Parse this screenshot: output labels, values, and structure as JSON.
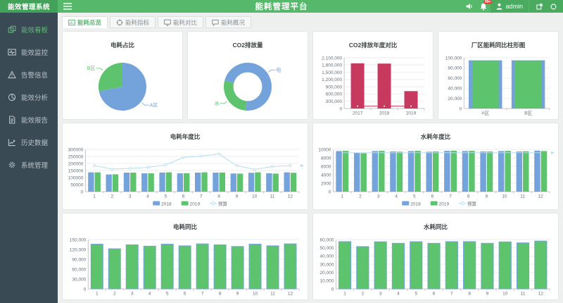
{
  "header": {
    "logo": "能效管理系统",
    "title": "能耗管理平台",
    "user": "admin",
    "badge": "99+"
  },
  "sidebar": {
    "items": [
      {
        "label": "能效看板",
        "icon": "dashboard-icon",
        "active": true
      },
      {
        "label": "能效监控",
        "icon": "monitor-icon",
        "active": false
      },
      {
        "label": "告警信息",
        "icon": "alert-icon",
        "active": false
      },
      {
        "label": "能效分析",
        "icon": "analysis-icon",
        "active": false
      },
      {
        "label": "能效报告",
        "icon": "report-icon",
        "active": false
      },
      {
        "label": "历史数据",
        "icon": "history-icon",
        "active": false
      },
      {
        "label": "系统管理",
        "icon": "settings-icon",
        "active": false
      }
    ]
  },
  "tabs": [
    {
      "label": "能耗总览",
      "active": true
    },
    {
      "label": "能耗指标",
      "active": false
    },
    {
      "label": "能耗对比",
      "active": false
    },
    {
      "label": "能耗概况",
      "active": false
    }
  ],
  "colors": {
    "accent_green": "#5FB878",
    "bar_blue": "#74a3dc",
    "bar_green": "#5ec36d",
    "crimson": "#c8395f",
    "budget_line": "#b5def0"
  },
  "chart_data": [
    {
      "type": "pie",
      "title": "电耗占比",
      "start": 0,
      "slices": [
        {
          "label": "A区",
          "value": 72,
          "color": "#74a3dc"
        },
        {
          "label": "B区",
          "value": 28,
          "color": "#5ec36d"
        }
      ]
    },
    {
      "type": "pie",
      "title": "CO2排放量",
      "donut": true,
      "start": 285,
      "slices": [
        {
          "label": "电",
          "value": 72,
          "color": "#74a3dc"
        },
        {
          "label": "水",
          "value": 28,
          "color": "#5ec36d"
        }
      ]
    },
    {
      "type": "bar",
      "title": "CO2排放年度对比",
      "categories": [
        "2017",
        "2018",
        "2019"
      ],
      "series": [
        {
          "name": "CO2",
          "values": [
            1870000,
            1860000,
            720000
          ],
          "color": "#c8395f"
        }
      ],
      "line": {
        "values": [
          100000,
          100000,
          100000
        ],
        "color": "#c8395f",
        "markers": true
      },
      "ylim": [
        0,
        2100000
      ],
      "ystep": 300000,
      "format": "comma",
      "bw": 0.5
    },
    {
      "type": "bar",
      "mode": "overlap",
      "title": "厂区能耗同比柱形图",
      "categories": [
        "A区",
        "B区"
      ],
      "series": [
        {
          "name": "",
          "values": [
            95000,
            95000
          ],
          "color": "#74a3dc",
          "width": 0.78
        },
        {
          "name": "",
          "values": [
            94000,
            94000
          ],
          "color": "#5ec36d",
          "width": 0.62
        }
      ],
      "ylim": [
        0,
        100000
      ],
      "ystep": 20000,
      "format": "comma"
    },
    {
      "type": "bar",
      "title": "电耗年度比",
      "categories": [
        "1",
        "2",
        "3",
        "4",
        "5",
        "6",
        "7",
        "8",
        "9",
        "10",
        "11",
        "12"
      ],
      "series": [
        {
          "name": "2018",
          "values": [
            137000,
            122000,
            135000,
            130000,
            136000,
            130000,
            135000,
            135000,
            129000,
            134000,
            130000,
            137000
          ],
          "color": "#74a3dc"
        },
        {
          "name": "2019",
          "values": [
            137000,
            123000,
            135000,
            130000,
            137000,
            131000,
            137000,
            136000,
            128000,
            137000,
            128000,
            134000
          ],
          "color": "#5ec36d"
        }
      ],
      "line": {
        "name": "预算",
        "values": [
          185000,
          160000,
          165000,
          172000,
          190000,
          243000,
          252000,
          268000,
          185000,
          158000,
          178000,
          185000
        ],
        "color": "#b5def0",
        "markers": true,
        "arrow": true
      },
      "ylim": [
        0,
        300000
      ],
      "ystep": 50000,
      "format": "plain",
      "legend": true,
      "bw": 0.7
    },
    {
      "type": "bar",
      "title": "水耗年度比",
      "categories": [
        "1",
        "2",
        "3",
        "4",
        "5",
        "6",
        "7",
        "8",
        "9",
        "10",
        "11",
        "12"
      ],
      "series": [
        {
          "name": "2018",
          "values": [
            9600,
            9150,
            9600,
            9500,
            9600,
            9450,
            9650,
            9600,
            9500,
            9600,
            9500,
            9700
          ],
          "color": "#74a3dc"
        },
        {
          "name": "2019",
          "values": [
            9650,
            9100,
            9650,
            9450,
            9650,
            9500,
            9700,
            9650,
            9500,
            9650,
            9550,
            9600
          ],
          "color": "#5ec36d"
        }
      ],
      "line": {
        "name": "预算",
        "values": [
          9200,
          9200,
          9200,
          9200,
          9200,
          9200,
          9200,
          9200,
          9200,
          9200,
          9200,
          9200
        ],
        "color": "#b5def0",
        "markers": false,
        "arrow": true
      },
      "ylim": [
        0,
        10000
      ],
      "ystep": 2000,
      "format": "plain",
      "legend": true,
      "bw": 0.7
    },
    {
      "type": "bar",
      "title": "电耗同比",
      "categories": [
        "1",
        "2",
        "3",
        "4",
        "5",
        "6",
        "7",
        "8",
        "9",
        "10",
        "11",
        "12"
      ],
      "series": [
        {
          "name": "",
          "values": [
            136000,
            122000,
            134000,
            130000,
            136000,
            131000,
            137000,
            134000,
            129000,
            136000,
            131000,
            137000
          ],
          "color": "#5ec36d",
          "stroke": "#74a3dc"
        }
      ],
      "ylim": [
        0,
        150000
      ],
      "ystep": 30000,
      "format": "comma",
      "bw": 0.68
    },
    {
      "type": "bar",
      "title": "水耗同比",
      "categories": [
        "1",
        "2",
        "3",
        "4",
        "5",
        "6",
        "7",
        "8",
        "9",
        "10",
        "11",
        "12"
      ],
      "series": [
        {
          "name": "",
          "values": [
            57500,
            51500,
            57300,
            55500,
            57400,
            55500,
            57500,
            57500,
            55500,
            57200,
            56000,
            58200
          ],
          "color": "#5ec36d",
          "stroke": "#74a3dc"
        }
      ],
      "ylim": [
        0,
        60000
      ],
      "ystep": 10000,
      "format": "comma",
      "bw": 0.68
    }
  ]
}
